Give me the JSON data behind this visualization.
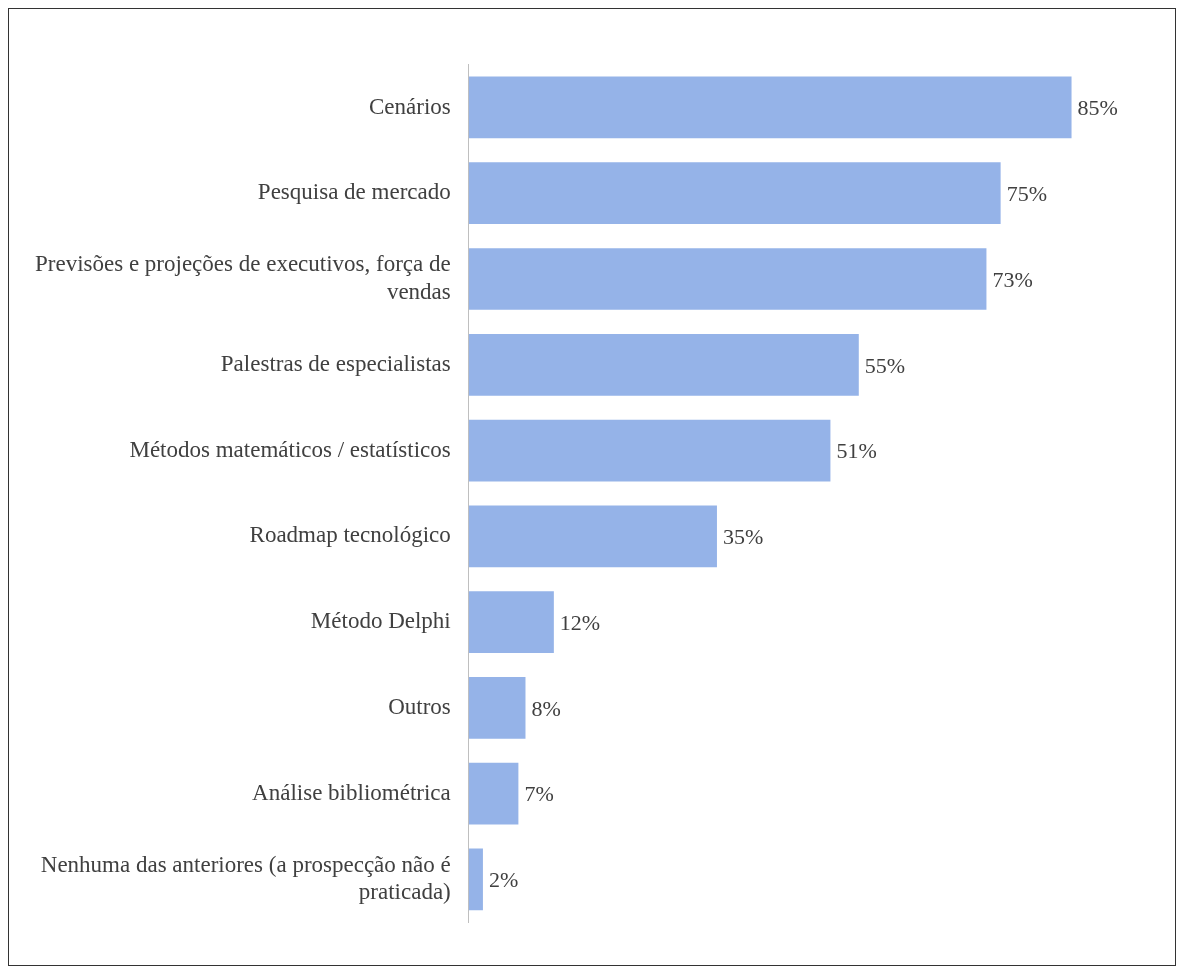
{
  "chart_data": {
    "type": "bar",
    "orientation": "horizontal",
    "categories": [
      "Cenários",
      "Pesquisa de mercado",
      "Previsões e projeções de executivos, força de vendas",
      "Palestras de especialistas",
      "Métodos matemáticos / estatísticos",
      "Roadmap tecnológico",
      "Método Delphi",
      "Outros",
      "Análise bibliométrica",
      "Nenhuma das anteriores (a prospecção não é praticada)"
    ],
    "values": [
      85,
      75,
      73,
      55,
      51,
      35,
      12,
      8,
      7,
      2
    ],
    "value_labels": [
      "85%",
      "75%",
      "73%",
      "55%",
      "51%",
      "35%",
      "12%",
      "8%",
      "7%",
      "2%"
    ],
    "color": "#95b3e8",
    "grid": false,
    "legend": false
  }
}
